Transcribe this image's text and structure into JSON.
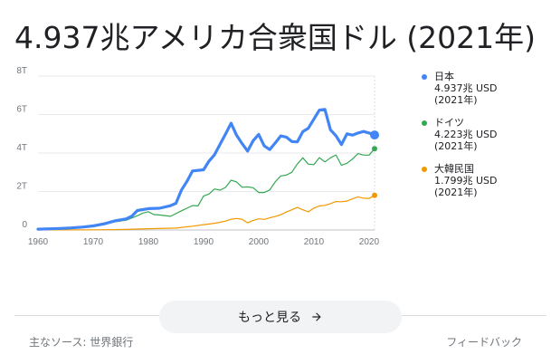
{
  "headline": "4.937兆アメリカ合衆国ドル (2021年)",
  "more_button": {
    "label": "もっと見る",
    "icon": "arrow-right-icon"
  },
  "footer": {
    "source": "主なソース: 世界銀行",
    "feedback": "フィードバック"
  },
  "legend": [
    {
      "name": "日本",
      "value": "4.937兆 USD",
      "year": "(2021年)",
      "color": "#4285f4"
    },
    {
      "name": "ドイツ",
      "value": "4.223兆 USD",
      "year": "(2021年)",
      "color": "#34a853"
    },
    {
      "name": "大韓民国",
      "value": "1.799兆 USD",
      "year": "(2021年)",
      "color": "#f29900"
    }
  ],
  "chart_data": {
    "type": "line",
    "title": "4.937兆アメリカ合衆国ドル (2021年)",
    "ylim": [
      0,
      8
    ],
    "yticks": [
      "0",
      "2T",
      "4T",
      "6T",
      "8T"
    ],
    "ytick_values": [
      0,
      2,
      4,
      6,
      8
    ],
    "xticks": [
      "1960",
      "1970",
      "1980",
      "1990",
      "2000",
      "2010",
      "2020"
    ],
    "xtick_values": [
      1960,
      1970,
      1980,
      1990,
      2000,
      2010,
      2020
    ],
    "xlim": [
      1960,
      2021
    ],
    "grid": true,
    "legend_position": "right",
    "series": [
      {
        "name": "日本",
        "color": "#4285f4",
        "x": [
          1960,
          1962,
          1964,
          1966,
          1968,
          1970,
          1972,
          1974,
          1976,
          1977,
          1978,
          1980,
          1982,
          1984,
          1985,
          1986,
          1987,
          1988,
          1990,
          1991,
          1992,
          1993,
          1994,
          1995,
          1996,
          1997,
          1998,
          1999,
          2000,
          2001,
          2002,
          2003,
          2004,
          2005,
          2006,
          2007,
          2008,
          2009,
          2010,
          2011,
          2012,
          2013,
          2014,
          2015,
          2016,
          2017,
          2018,
          2019,
          2020,
          2021
        ],
        "values": [
          0.044,
          0.06,
          0.082,
          0.11,
          0.15,
          0.21,
          0.32,
          0.48,
          0.58,
          0.72,
          1.01,
          1.11,
          1.13,
          1.26,
          1.39,
          2.08,
          2.53,
          3.07,
          3.13,
          3.58,
          3.91,
          4.45,
          4.99,
          5.55,
          4.92,
          4.49,
          4.1,
          4.64,
          4.97,
          4.37,
          4.18,
          4.52,
          4.89,
          4.83,
          4.6,
          4.58,
          5.11,
          5.29,
          5.76,
          6.23,
          6.27,
          5.21,
          4.9,
          4.44,
          5.0,
          4.93,
          5.04,
          5.12,
          5.04,
          4.937
        ]
      },
      {
        "name": "ドイツ",
        "color": "#34a853",
        "x": [
          1970,
          1972,
          1974,
          1976,
          1978,
          1979,
          1980,
          1981,
          1982,
          1984,
          1986,
          1988,
          1989,
          1990,
          1991,
          1992,
          1993,
          1994,
          1995,
          1996,
          1997,
          1998,
          1999,
          2000,
          2001,
          2002,
          2003,
          2004,
          2005,
          2006,
          2007,
          2008,
          2009,
          2010,
          2011,
          2012,
          2013,
          2014,
          2015,
          2016,
          2017,
          2018,
          2019,
          2020,
          2021
        ],
        "values": [
          0.21,
          0.3,
          0.43,
          0.51,
          0.74,
          0.88,
          0.95,
          0.8,
          0.78,
          0.71,
          1.0,
          1.27,
          1.25,
          1.77,
          1.87,
          2.13,
          2.07,
          2.21,
          2.59,
          2.5,
          2.22,
          2.24,
          2.2,
          1.95,
          1.95,
          2.08,
          2.5,
          2.81,
          2.85,
          3.0,
          3.43,
          3.75,
          3.42,
          3.4,
          3.76,
          3.54,
          3.75,
          3.9,
          3.36,
          3.47,
          3.69,
          3.97,
          3.89,
          3.89,
          4.223
        ]
      },
      {
        "name": "大韓民国",
        "color": "#f29900",
        "x": [
          1960,
          1970,
          1975,
          1980,
          1985,
          1988,
          1990,
          1992,
          1994,
          1995,
          1996,
          1997,
          1998,
          1999,
          2000,
          2001,
          2002,
          2003,
          2004,
          2005,
          2006,
          2007,
          2008,
          2009,
          2010,
          2011,
          2012,
          2013,
          2014,
          2015,
          2016,
          2017,
          2018,
          2019,
          2020,
          2021
        ],
        "values": [
          0.004,
          0.009,
          0.022,
          0.065,
          0.1,
          0.2,
          0.28,
          0.35,
          0.46,
          0.56,
          0.6,
          0.56,
          0.37,
          0.5,
          0.58,
          0.55,
          0.63,
          0.7,
          0.79,
          0.93,
          1.05,
          1.17,
          1.05,
          0.94,
          1.14,
          1.25,
          1.28,
          1.37,
          1.48,
          1.47,
          1.5,
          1.62,
          1.72,
          1.65,
          1.64,
          1.799
        ]
      }
    ]
  }
}
